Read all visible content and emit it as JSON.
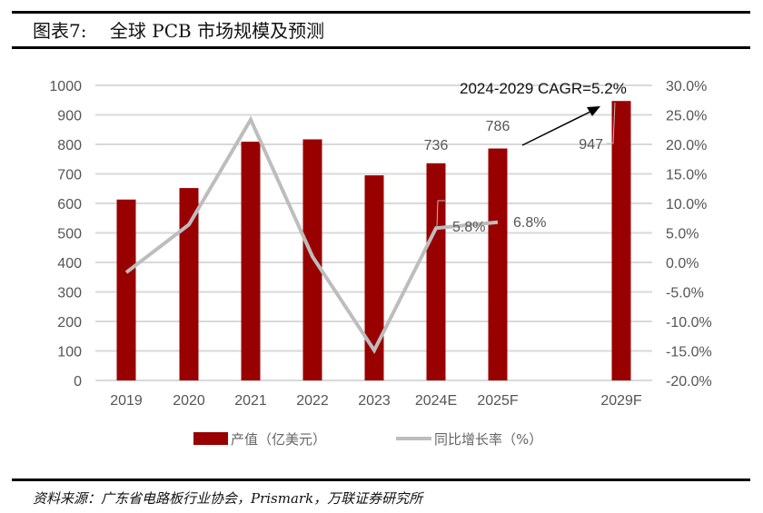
{
  "title": "图表7:    全球 PCB 市场规模及预测",
  "source": "资料来源：广东省电路板行业协会，Prismark，万联证券研究所",
  "chart_data": {
    "type": "bar+line",
    "categories": [
      "2019",
      "2020",
      "2021",
      "2022",
      "2023",
      "2024E",
      "2025F",
      "2029F"
    ],
    "series": [
      {
        "name": "产值（亿美元）",
        "type": "bar",
        "axis": "left",
        "color": "#990000",
        "values": [
          613,
          652,
          809,
          817,
          695,
          736,
          786,
          947
        ]
      },
      {
        "name": "同比增长率（%）",
        "type": "line",
        "axis": "right",
        "color": "#bdbdbd",
        "values": [
          -1.7,
          6.4,
          24.2,
          1.0,
          -14.9,
          5.8,
          6.8,
          null
        ]
      }
    ],
    "data_labels": {
      "bar": {
        "5": "736",
        "6": "786",
        "7": "947"
      },
      "line": {
        "5": "5.8%",
        "6": "6.8%"
      }
    },
    "annotation": "2024-2029 CAGR=5.2%",
    "y_left": {
      "lim": [
        0,
        1000
      ],
      "ticks": [
        "0",
        "100",
        "200",
        "300",
        "400",
        "500",
        "600",
        "700",
        "800",
        "900",
        "1000"
      ]
    },
    "y_right": {
      "lim": [
        -20,
        30
      ],
      "ticks": [
        "-20.0%",
        "-15.0%",
        "-10.0%",
        "-5.0%",
        "0.0%",
        "5.0%",
        "10.0%",
        "15.0%",
        "20.0%",
        "25.0%",
        "30.0%"
      ]
    },
    "grid": true,
    "legend": "bottom"
  }
}
